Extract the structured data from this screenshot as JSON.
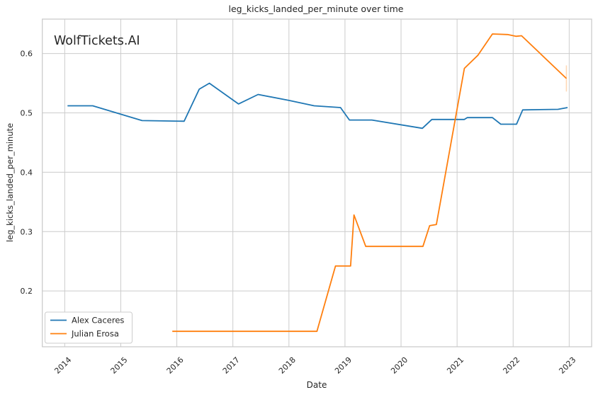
{
  "watermark": "WolfTickets.AI",
  "chart_data": {
    "type": "line",
    "title": "leg_kicks_landed_per_minute over time",
    "xlabel": "Date",
    "ylabel": "leg_kicks_landed_per_minute",
    "grid": true,
    "legend_position": "lower-left",
    "background_color": "#ffffff",
    "grid_color": "#cccccc",
    "spine_color": "#c8c8c8",
    "text_color": "#262626",
    "watermark_color": "#c5c5c5",
    "xlim": [
      2013.6,
      2023.4
    ],
    "ylim": [
      0.106,
      0.658
    ],
    "x_ticks": [
      2014,
      2015,
      2016,
      2017,
      2018,
      2019,
      2020,
      2021,
      2022,
      2023
    ],
    "y_ticks": [
      0.2,
      0.3,
      0.4,
      0.5,
      0.6
    ],
    "series": [
      {
        "name": "Alex Caceres",
        "color": "#1f77b4",
        "points": [
          [
            2014.05,
            0.512
          ],
          [
            2014.5,
            0.512
          ],
          [
            2015.38,
            0.487
          ],
          [
            2016.13,
            0.486
          ],
          [
            2016.4,
            0.54
          ],
          [
            2016.58,
            0.55
          ],
          [
            2017.1,
            0.515
          ],
          [
            2017.45,
            0.531
          ],
          [
            2018.0,
            0.521
          ],
          [
            2018.45,
            0.512
          ],
          [
            2018.92,
            0.509
          ],
          [
            2019.08,
            0.488
          ],
          [
            2019.48,
            0.488
          ],
          [
            2020.38,
            0.474
          ],
          [
            2020.55,
            0.489
          ],
          [
            2021.13,
            0.489
          ],
          [
            2021.18,
            0.492
          ],
          [
            2021.63,
            0.492
          ],
          [
            2021.78,
            0.481
          ],
          [
            2022.06,
            0.481
          ],
          [
            2022.17,
            0.505
          ],
          [
            2022.8,
            0.506
          ],
          [
            2022.97,
            0.509
          ]
        ]
      },
      {
        "name": "Julian Erosa",
        "color": "#ff7f0e",
        "points": [
          [
            2015.92,
            0.132
          ],
          [
            2018.5,
            0.132
          ],
          [
            2018.83,
            0.242
          ],
          [
            2019.1,
            0.242
          ],
          [
            2019.16,
            0.328
          ],
          [
            2019.37,
            0.275
          ],
          [
            2020.39,
            0.275
          ],
          [
            2020.51,
            0.31
          ],
          [
            2020.63,
            0.312
          ],
          [
            2021.13,
            0.575
          ],
          [
            2021.37,
            0.597
          ],
          [
            2021.63,
            0.633
          ],
          [
            2021.9,
            0.632
          ],
          [
            2022.05,
            0.629
          ],
          [
            2022.15,
            0.63
          ],
          [
            2022.95,
            0.558
          ]
        ],
        "error_bar": {
          "x": 2022.95,
          "y_low": 0.536,
          "y_high": 0.58
        }
      }
    ]
  }
}
